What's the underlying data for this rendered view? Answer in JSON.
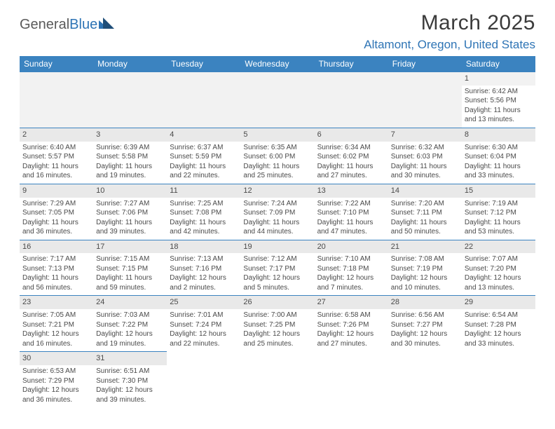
{
  "logo": {
    "part1": "General",
    "part2": "Blue"
  },
  "title": "March 2025",
  "location": "Altamont, Oregon, United States",
  "weekdays": [
    "Sunday",
    "Monday",
    "Tuesday",
    "Wednesday",
    "Thursday",
    "Friday",
    "Saturday"
  ],
  "colors": {
    "header_bg": "#3b83c0",
    "header_text": "#ffffff",
    "accent": "#2e74b5",
    "daybar_bg": "#e9e9e9",
    "text": "#4a4a4a"
  },
  "weeks": [
    [
      null,
      null,
      null,
      null,
      null,
      null,
      {
        "n": "1",
        "sr": "Sunrise: 6:42 AM",
        "ss": "Sunset: 5:56 PM",
        "d1": "Daylight: 11 hours",
        "d2": "and 13 minutes."
      }
    ],
    [
      {
        "n": "2",
        "sr": "Sunrise: 6:40 AM",
        "ss": "Sunset: 5:57 PM",
        "d1": "Daylight: 11 hours",
        "d2": "and 16 minutes."
      },
      {
        "n": "3",
        "sr": "Sunrise: 6:39 AM",
        "ss": "Sunset: 5:58 PM",
        "d1": "Daylight: 11 hours",
        "d2": "and 19 minutes."
      },
      {
        "n": "4",
        "sr": "Sunrise: 6:37 AM",
        "ss": "Sunset: 5:59 PM",
        "d1": "Daylight: 11 hours",
        "d2": "and 22 minutes."
      },
      {
        "n": "5",
        "sr": "Sunrise: 6:35 AM",
        "ss": "Sunset: 6:00 PM",
        "d1": "Daylight: 11 hours",
        "d2": "and 25 minutes."
      },
      {
        "n": "6",
        "sr": "Sunrise: 6:34 AM",
        "ss": "Sunset: 6:02 PM",
        "d1": "Daylight: 11 hours",
        "d2": "and 27 minutes."
      },
      {
        "n": "7",
        "sr": "Sunrise: 6:32 AM",
        "ss": "Sunset: 6:03 PM",
        "d1": "Daylight: 11 hours",
        "d2": "and 30 minutes."
      },
      {
        "n": "8",
        "sr": "Sunrise: 6:30 AM",
        "ss": "Sunset: 6:04 PM",
        "d1": "Daylight: 11 hours",
        "d2": "and 33 minutes."
      }
    ],
    [
      {
        "n": "9",
        "sr": "Sunrise: 7:29 AM",
        "ss": "Sunset: 7:05 PM",
        "d1": "Daylight: 11 hours",
        "d2": "and 36 minutes."
      },
      {
        "n": "10",
        "sr": "Sunrise: 7:27 AM",
        "ss": "Sunset: 7:06 PM",
        "d1": "Daylight: 11 hours",
        "d2": "and 39 minutes."
      },
      {
        "n": "11",
        "sr": "Sunrise: 7:25 AM",
        "ss": "Sunset: 7:08 PM",
        "d1": "Daylight: 11 hours",
        "d2": "and 42 minutes."
      },
      {
        "n": "12",
        "sr": "Sunrise: 7:24 AM",
        "ss": "Sunset: 7:09 PM",
        "d1": "Daylight: 11 hours",
        "d2": "and 44 minutes."
      },
      {
        "n": "13",
        "sr": "Sunrise: 7:22 AM",
        "ss": "Sunset: 7:10 PM",
        "d1": "Daylight: 11 hours",
        "d2": "and 47 minutes."
      },
      {
        "n": "14",
        "sr": "Sunrise: 7:20 AM",
        "ss": "Sunset: 7:11 PM",
        "d1": "Daylight: 11 hours",
        "d2": "and 50 minutes."
      },
      {
        "n": "15",
        "sr": "Sunrise: 7:19 AM",
        "ss": "Sunset: 7:12 PM",
        "d1": "Daylight: 11 hours",
        "d2": "and 53 minutes."
      }
    ],
    [
      {
        "n": "16",
        "sr": "Sunrise: 7:17 AM",
        "ss": "Sunset: 7:13 PM",
        "d1": "Daylight: 11 hours",
        "d2": "and 56 minutes."
      },
      {
        "n": "17",
        "sr": "Sunrise: 7:15 AM",
        "ss": "Sunset: 7:15 PM",
        "d1": "Daylight: 11 hours",
        "d2": "and 59 minutes."
      },
      {
        "n": "18",
        "sr": "Sunrise: 7:13 AM",
        "ss": "Sunset: 7:16 PM",
        "d1": "Daylight: 12 hours",
        "d2": "and 2 minutes."
      },
      {
        "n": "19",
        "sr": "Sunrise: 7:12 AM",
        "ss": "Sunset: 7:17 PM",
        "d1": "Daylight: 12 hours",
        "d2": "and 5 minutes."
      },
      {
        "n": "20",
        "sr": "Sunrise: 7:10 AM",
        "ss": "Sunset: 7:18 PM",
        "d1": "Daylight: 12 hours",
        "d2": "and 7 minutes."
      },
      {
        "n": "21",
        "sr": "Sunrise: 7:08 AM",
        "ss": "Sunset: 7:19 PM",
        "d1": "Daylight: 12 hours",
        "d2": "and 10 minutes."
      },
      {
        "n": "22",
        "sr": "Sunrise: 7:07 AM",
        "ss": "Sunset: 7:20 PM",
        "d1": "Daylight: 12 hours",
        "d2": "and 13 minutes."
      }
    ],
    [
      {
        "n": "23",
        "sr": "Sunrise: 7:05 AM",
        "ss": "Sunset: 7:21 PM",
        "d1": "Daylight: 12 hours",
        "d2": "and 16 minutes."
      },
      {
        "n": "24",
        "sr": "Sunrise: 7:03 AM",
        "ss": "Sunset: 7:22 PM",
        "d1": "Daylight: 12 hours",
        "d2": "and 19 minutes."
      },
      {
        "n": "25",
        "sr": "Sunrise: 7:01 AM",
        "ss": "Sunset: 7:24 PM",
        "d1": "Daylight: 12 hours",
        "d2": "and 22 minutes."
      },
      {
        "n": "26",
        "sr": "Sunrise: 7:00 AM",
        "ss": "Sunset: 7:25 PM",
        "d1": "Daylight: 12 hours",
        "d2": "and 25 minutes."
      },
      {
        "n": "27",
        "sr": "Sunrise: 6:58 AM",
        "ss": "Sunset: 7:26 PM",
        "d1": "Daylight: 12 hours",
        "d2": "and 27 minutes."
      },
      {
        "n": "28",
        "sr": "Sunrise: 6:56 AM",
        "ss": "Sunset: 7:27 PM",
        "d1": "Daylight: 12 hours",
        "d2": "and 30 minutes."
      },
      {
        "n": "29",
        "sr": "Sunrise: 6:54 AM",
        "ss": "Sunset: 7:28 PM",
        "d1": "Daylight: 12 hours",
        "d2": "and 33 minutes."
      }
    ],
    [
      {
        "n": "30",
        "sr": "Sunrise: 6:53 AM",
        "ss": "Sunset: 7:29 PM",
        "d1": "Daylight: 12 hours",
        "d2": "and 36 minutes."
      },
      {
        "n": "31",
        "sr": "Sunrise: 6:51 AM",
        "ss": "Sunset: 7:30 PM",
        "d1": "Daylight: 12 hours",
        "d2": "and 39 minutes."
      },
      null,
      null,
      null,
      null,
      null
    ]
  ]
}
